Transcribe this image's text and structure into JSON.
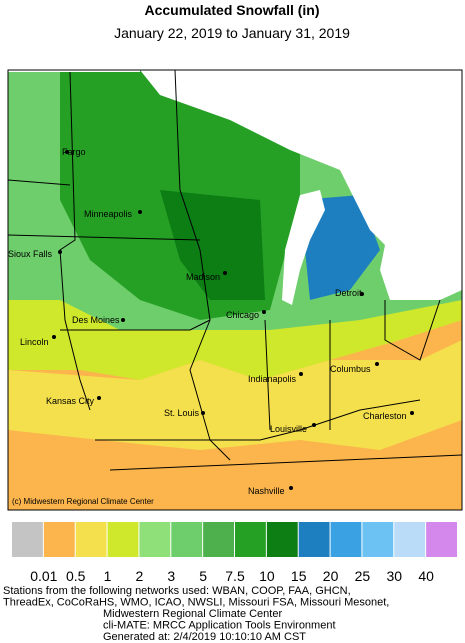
{
  "title": "Accumulated Snowfall (in)",
  "subtitle": "January 22, 2019 to January 31, 2019",
  "copyright": "(c) Midwestern Regional Climate Center",
  "cities": [
    "Fargo",
    "Minneapolis",
    "Sioux Falls",
    "Madison",
    "Detroit",
    "Des Moines",
    "Chicago",
    "Lincoln",
    "Columbus",
    "Indianapolis",
    "Kansas City",
    "St. Louis",
    "Charleston",
    "Louisville",
    "Nashville"
  ],
  "legend": {
    "colors": [
      "#c4c4c4",
      "#fbb54c",
      "#f4e04c",
      "#cfe82c",
      "#90e07a",
      "#6fce6c",
      "#4db04c",
      "#25a025",
      "#0c7e14",
      "#1e7fc0",
      "#3aa2e2",
      "#6cc2f2",
      "#badcf8",
      "#d488ec"
    ],
    "labels": [
      0.01,
      0.5,
      1,
      2,
      3,
      5,
      7.5,
      10,
      15,
      20,
      25,
      30,
      40
    ]
  },
  "footer": [
    "Stations from the following networks used: WBAN, COOP, FAA, GHCN,",
    "ThreadEx, CoCoRaHS, WMO, ICAO, NWSLI, Missouri FSA, Missouri Mesonet,",
    "Midwestern Regional Climate Center",
    "cli-MATE: MRCC Application Tools Environment",
    "Generated at: 2/4/2019 10:10:10 AM CST"
  ]
}
